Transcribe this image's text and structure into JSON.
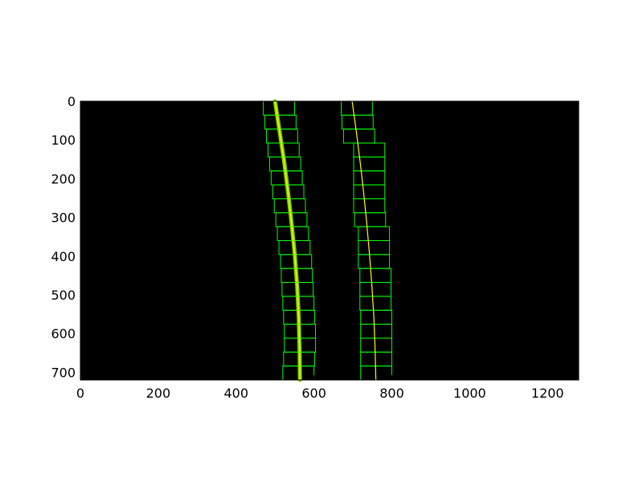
{
  "colors": {
    "image_background": "#000000",
    "figure_background": "#ffffff",
    "window_box": "#00ff00",
    "fit_line": "#ffff00",
    "left_lane_band": "#7fd200",
    "axis": "#000000"
  },
  "chart_data": {
    "type": "image",
    "title": "",
    "xlabel": "",
    "ylabel": "",
    "xlim": [
      0,
      1280
    ],
    "ylim": [
      720,
      0
    ],
    "x_ticks": [
      {
        "value": 0,
        "label": "0"
      },
      {
        "value": 200,
        "label": "200"
      },
      {
        "value": 400,
        "label": "400"
      },
      {
        "value": 600,
        "label": "600"
      },
      {
        "value": 800,
        "label": "800"
      },
      {
        "value": 1000,
        "label": "1000"
      },
      {
        "value": 1200,
        "label": "1200"
      }
    ],
    "y_ticks": [
      {
        "value": 0,
        "label": "0"
      },
      {
        "value": 100,
        "label": "100"
      },
      {
        "value": 200,
        "label": "200"
      },
      {
        "value": 300,
        "label": "300"
      },
      {
        "value": 400,
        "label": "400"
      },
      {
        "value": 500,
        "label": "500"
      },
      {
        "value": 600,
        "label": "600"
      },
      {
        "value": 700,
        "label": "700"
      }
    ],
    "window_height": 36,
    "left_windows": [
      {
        "x1": 470,
        "x2": 550,
        "y": 0
      },
      {
        "x1": 474,
        "x2": 554,
        "y": 36
      },
      {
        "x1": 478,
        "x2": 558,
        "y": 72
      },
      {
        "x1": 482,
        "x2": 562,
        "y": 108
      },
      {
        "x1": 486,
        "x2": 566,
        "y": 144
      },
      {
        "x1": 490,
        "x2": 570,
        "y": 180
      },
      {
        "x1": 494,
        "x2": 574,
        "y": 216
      },
      {
        "x1": 498,
        "x2": 578,
        "y": 252
      },
      {
        "x1": 502,
        "x2": 582,
        "y": 288
      },
      {
        "x1": 506,
        "x2": 586,
        "y": 324
      },
      {
        "x1": 510,
        "x2": 590,
        "y": 360
      },
      {
        "x1": 514,
        "x2": 594,
        "y": 396
      },
      {
        "x1": 516,
        "x2": 596,
        "y": 432
      },
      {
        "x1": 518,
        "x2": 598,
        "y": 468
      },
      {
        "x1": 520,
        "x2": 600,
        "y": 504
      },
      {
        "x1": 522,
        "x2": 602,
        "y": 540
      },
      {
        "x1": 524,
        "x2": 604,
        "y": 576
      },
      {
        "x1": 524,
        "x2": 604,
        "y": 612
      },
      {
        "x1": 522,
        "x2": 602,
        "y": 648
      },
      {
        "x1": 520,
        "x2": 600,
        "y": 684
      }
    ],
    "right_windows": [
      {
        "x1": 670,
        "x2": 750,
        "y": 0
      },
      {
        "x1": 672,
        "x2": 752,
        "y": 36
      },
      {
        "x1": 676,
        "x2": 756,
        "y": 72
      },
      {
        "x1": 702,
        "x2": 782,
        "y": 108
      },
      {
        "x1": 702,
        "x2": 782,
        "y": 144
      },
      {
        "x1": 702,
        "x2": 782,
        "y": 180
      },
      {
        "x1": 702,
        "x2": 782,
        "y": 216
      },
      {
        "x1": 702,
        "x2": 782,
        "y": 252
      },
      {
        "x1": 704,
        "x2": 784,
        "y": 288
      },
      {
        "x1": 714,
        "x2": 794,
        "y": 324
      },
      {
        "x1": 714,
        "x2": 794,
        "y": 360
      },
      {
        "x1": 714,
        "x2": 794,
        "y": 396
      },
      {
        "x1": 718,
        "x2": 798,
        "y": 432
      },
      {
        "x1": 718,
        "x2": 798,
        "y": 468
      },
      {
        "x1": 718,
        "x2": 798,
        "y": 504
      },
      {
        "x1": 720,
        "x2": 800,
        "y": 540
      },
      {
        "x1": 720,
        "x2": 800,
        "y": 576
      },
      {
        "x1": 720,
        "x2": 800,
        "y": 612
      },
      {
        "x1": 720,
        "x2": 800,
        "y": 648
      },
      {
        "x1": 720,
        "x2": 800,
        "y": 684
      }
    ],
    "left_fit": {
      "name": "",
      "points": [
        {
          "x": 500,
          "y": 0
        },
        {
          "x": 512,
          "y": 80
        },
        {
          "x": 524,
          "y": 160
        },
        {
          "x": 534,
          "y": 240
        },
        {
          "x": 543,
          "y": 320
        },
        {
          "x": 551,
          "y": 400
        },
        {
          "x": 557,
          "y": 480
        },
        {
          "x": 561,
          "y": 560
        },
        {
          "x": 563,
          "y": 640
        },
        {
          "x": 564,
          "y": 720
        }
      ]
    },
    "right_fit": {
      "name": "",
      "points": [
        {
          "x": 698,
          "y": 0
        },
        {
          "x": 709,
          "y": 80
        },
        {
          "x": 719,
          "y": 160
        },
        {
          "x": 728,
          "y": 240
        },
        {
          "x": 736,
          "y": 320
        },
        {
          "x": 743,
          "y": 400
        },
        {
          "x": 749,
          "y": 480
        },
        {
          "x": 754,
          "y": 560
        },
        {
          "x": 757,
          "y": 640
        },
        {
          "x": 759,
          "y": 720
        }
      ]
    }
  }
}
